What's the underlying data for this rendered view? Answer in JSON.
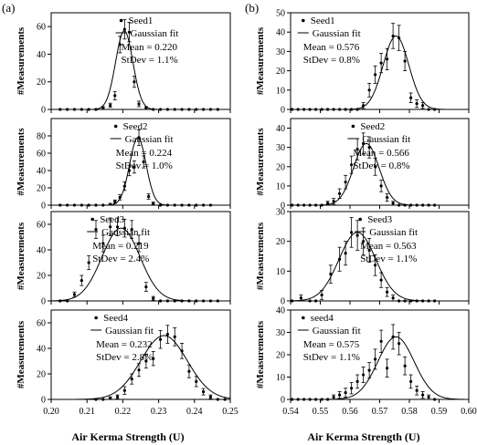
{
  "figure": {
    "panel_a_label": "(a)",
    "panel_b_label": "(b)",
    "ylabel": "#Measurements",
    "xlabel_left": "Air Kerma Strength (U)",
    "xlabel_right": "Air Kerma Strength (U)",
    "legend_fit_label": "Gaussian fit"
  },
  "chart_data": [
    {
      "type": "scatter",
      "column": "a",
      "row": 1,
      "series": [
        {
          "name": "Seed1"
        },
        {
          "name": "Gaussian fit"
        }
      ],
      "mean_text": "Mean = 0.220",
      "stdev_text": "StDev = 1.1%",
      "xlim": [
        0.2,
        0.25
      ],
      "ylim": [
        0,
        70
      ],
      "yticks": [
        "0",
        "20",
        "40",
        "60"
      ],
      "xticks": [
        "0.20",
        "0.21",
        "0.22",
        "0.23",
        "0.24",
        "0.25"
      ],
      "fit": {
        "mean": 0.2204,
        "sigma": 0.0024,
        "amplitude": 57
      },
      "points": [
        [
          0.2025,
          0,
          0
        ],
        [
          0.2045,
          0,
          0
        ],
        [
          0.2065,
          0,
          0
        ],
        [
          0.2085,
          0,
          0
        ],
        [
          0.2105,
          0,
          0
        ],
        [
          0.2125,
          0,
          0
        ],
        [
          0.2145,
          1,
          1
        ],
        [
          0.2165,
          3,
          1.5
        ],
        [
          0.2178,
          10,
          3
        ],
        [
          0.2192,
          47,
          6
        ],
        [
          0.2205,
          58,
          7
        ],
        [
          0.2218,
          56,
          7
        ],
        [
          0.2232,
          20,
          4
        ],
        [
          0.2245,
          4,
          2
        ],
        [
          0.2265,
          1,
          1
        ],
        [
          0.2285,
          0,
          0
        ],
        [
          0.2305,
          0,
          0
        ],
        [
          0.2325,
          0,
          0
        ],
        [
          0.2345,
          0,
          0
        ],
        [
          0.2365,
          0,
          0
        ],
        [
          0.2385,
          0,
          0
        ],
        [
          0.2405,
          0,
          0
        ],
        [
          0.2425,
          0,
          0
        ],
        [
          0.2445,
          0,
          0
        ],
        [
          0.2465,
          0,
          0
        ]
      ]
    },
    {
      "type": "scatter",
      "column": "a",
      "row": 2,
      "series": [
        {
          "name": "Seed2"
        },
        {
          "name": "Gaussian fit"
        }
      ],
      "mean_text": "Mean = 0.224",
      "stdev_text": "StDev = 1.0%",
      "xlim": [
        0.2,
        0.25
      ],
      "ylim": [
        0,
        100
      ],
      "yticks": [
        "0",
        "20",
        "40",
        "60",
        "80"
      ],
      "xticks": [
        "0.20",
        "0.21",
        "0.22",
        "0.23",
        "0.24",
        "0.25"
      ],
      "fit": {
        "mean": 0.2242,
        "sigma": 0.0023,
        "amplitude": 78
      },
      "points": [
        [
          0.2025,
          0,
          0
        ],
        [
          0.2045,
          0,
          0
        ],
        [
          0.2065,
          0,
          0
        ],
        [
          0.2085,
          0,
          0
        ],
        [
          0.2105,
          0,
          0
        ],
        [
          0.2125,
          0,
          0
        ],
        [
          0.2145,
          0,
          0
        ],
        [
          0.2165,
          1,
          1
        ],
        [
          0.2178,
          4,
          2
        ],
        [
          0.2192,
          9,
          3
        ],
        [
          0.2205,
          22,
          5
        ],
        [
          0.2218,
          40,
          6
        ],
        [
          0.2232,
          44,
          7
        ],
        [
          0.2245,
          78,
          9
        ],
        [
          0.2258,
          50,
          7
        ],
        [
          0.2272,
          10,
          3
        ],
        [
          0.2285,
          2,
          1.5
        ],
        [
          0.2305,
          0,
          0
        ],
        [
          0.2325,
          0,
          0
        ],
        [
          0.2345,
          0,
          0
        ],
        [
          0.2365,
          0,
          0
        ],
        [
          0.2385,
          0,
          0
        ],
        [
          0.2405,
          0,
          0
        ],
        [
          0.2425,
          0,
          0
        ],
        [
          0.2445,
          0,
          0
        ]
      ]
    },
    {
      "type": "scatter",
      "column": "a",
      "row": 3,
      "series": [
        {
          "name": "Seed3"
        },
        {
          "name": "Gaussian fit"
        }
      ],
      "mean_text": "Mean = 0.219",
      "stdev_text": "StDev = 2.4%",
      "xlim": [
        0.2,
        0.25
      ],
      "ylim": [
        0,
        70
      ],
      "yticks": [
        "0",
        "20",
        "40",
        "60"
      ],
      "xticks": [
        "0.20",
        "0.21",
        "0.22",
        "0.23",
        "0.24",
        "0.25"
      ],
      "fit": {
        "mean": 0.2195,
        "sigma": 0.0053,
        "amplitude": 57
      },
      "points": [
        [
          0.2025,
          0,
          0
        ],
        [
          0.2045,
          0,
          0
        ],
        [
          0.2065,
          5,
          2
        ],
        [
          0.2085,
          16,
          4
        ],
        [
          0.2105,
          30,
          5.5
        ],
        [
          0.2125,
          56,
          7
        ],
        [
          0.2145,
          45,
          6.5
        ],
        [
          0.2165,
          58,
          7
        ],
        [
          0.2185,
          58,
          7
        ],
        [
          0.2205,
          57,
          7
        ],
        [
          0.2225,
          56,
          7
        ],
        [
          0.2245,
          45,
          6.5
        ],
        [
          0.2265,
          11,
          3.5
        ],
        [
          0.2285,
          2,
          1.5
        ],
        [
          0.2305,
          0,
          0
        ],
        [
          0.2325,
          0,
          0
        ],
        [
          0.2345,
          0,
          0
        ],
        [
          0.2365,
          0,
          0
        ],
        [
          0.2385,
          0,
          0
        ],
        [
          0.2405,
          0,
          0
        ],
        [
          0.2425,
          0,
          0
        ],
        [
          0.2445,
          0,
          0
        ],
        [
          0.2465,
          0,
          0
        ]
      ]
    },
    {
      "type": "scatter",
      "column": "a",
      "row": 4,
      "series": [
        {
          "name": "Seed4"
        },
        {
          "name": "Gaussian fit"
        }
      ],
      "mean_text": "Mean = 0.232",
      "stdev_text": "StDev = 2.8%",
      "xlim": [
        0.2,
        0.25
      ],
      "ylim": [
        0,
        70
      ],
      "yticks": [
        "0",
        "20",
        "40",
        "60"
      ],
      "xticks": [
        "0.20",
        "0.21",
        "0.22",
        "0.23",
        "0.24",
        "0.25"
      ],
      "fit": {
        "mean": 0.2315,
        "sigma": 0.0065,
        "amplitude": 50
      },
      "points": [
        [
          0.2125,
          0,
          0
        ],
        [
          0.2145,
          0,
          0
        ],
        [
          0.2165,
          1,
          1
        ],
        [
          0.2185,
          2,
          1.5
        ],
        [
          0.2205,
          7,
          3
        ],
        [
          0.2225,
          16,
          4
        ],
        [
          0.2245,
          23,
          5
        ],
        [
          0.2265,
          30,
          5.5
        ],
        [
          0.2285,
          32,
          5.5
        ],
        [
          0.2305,
          47,
          7
        ],
        [
          0.2325,
          51,
          7
        ],
        [
          0.2345,
          49,
          7
        ],
        [
          0.2365,
          38,
          6
        ],
        [
          0.2385,
          22,
          5
        ],
        [
          0.2405,
          14,
          4
        ],
        [
          0.2425,
          6,
          2.5
        ],
        [
          0.2445,
          2,
          1.5
        ],
        [
          0.2465,
          0,
          0
        ],
        [
          0.2485,
          0,
          0
        ]
      ]
    },
    {
      "type": "scatter",
      "column": "b",
      "row": 1,
      "series": [
        {
          "name": "Seed1"
        },
        {
          "name": "Gaussian fit"
        }
      ],
      "mean_text": "Mean = 0.576",
      "stdev_text": "StDev = 0.8%",
      "xlim": [
        0.54,
        0.6
      ],
      "ylim": [
        0,
        50
      ],
      "yticks": [
        "0",
        "10",
        "20",
        "30",
        "40",
        "50"
      ],
      "xticks": [
        "0.54",
        "0.55",
        "0.56",
        "0.57",
        "0.58",
        "0.59",
        "0.60"
      ],
      "fit": {
        "mean": 0.5755,
        "sigma": 0.0043,
        "amplitude": 38
      },
      "points": [
        [
          0.5405,
          0,
          0
        ],
        [
          0.5425,
          0,
          0
        ],
        [
          0.5445,
          0,
          0
        ],
        [
          0.5465,
          0,
          0
        ],
        [
          0.5485,
          0,
          0
        ],
        [
          0.5505,
          0,
          0
        ],
        [
          0.5525,
          0,
          0
        ],
        [
          0.5545,
          0,
          0
        ],
        [
          0.5565,
          0,
          0
        ],
        [
          0.5585,
          0,
          0
        ],
        [
          0.5605,
          0,
          0
        ],
        [
          0.5625,
          0,
          0
        ],
        [
          0.5645,
          2,
          1.5
        ],
        [
          0.5665,
          10,
          3.5
        ],
        [
          0.5685,
          18,
          4.5
        ],
        [
          0.5705,
          24,
          5
        ],
        [
          0.5725,
          26,
          5.5
        ],
        [
          0.5745,
          38,
          6.5
        ],
        [
          0.5765,
          37,
          6.5
        ],
        [
          0.5785,
          25,
          5
        ],
        [
          0.5805,
          6,
          2.5
        ],
        [
          0.5825,
          3,
          2
        ],
        [
          0.5845,
          2,
          1.5
        ],
        [
          0.5865,
          0,
          0
        ],
        [
          0.5885,
          0,
          0
        ]
      ]
    },
    {
      "type": "scatter",
      "column": "b",
      "row": 2,
      "series": [
        {
          "name": "Seed2"
        },
        {
          "name": "Gaussian fit"
        }
      ],
      "mean_text": "Mean = 0.566",
      "stdev_text": "StDev = 0.8%",
      "xlim": [
        0.54,
        0.6
      ],
      "ylim": [
        0,
        45
      ],
      "yticks": [
        "0",
        "10",
        "20",
        "30",
        "40"
      ],
      "xticks": [
        "0.54",
        "0.55",
        "0.56",
        "0.57",
        "0.58",
        "0.59",
        "0.60"
      ],
      "fit": {
        "mean": 0.5655,
        "sigma": 0.0043,
        "amplitude": 32
      },
      "points": [
        [
          0.5405,
          0,
          0
        ],
        [
          0.5425,
          0,
          0
        ],
        [
          0.5445,
          0,
          0
        ],
        [
          0.5465,
          0,
          0
        ],
        [
          0.5485,
          0,
          0
        ],
        [
          0.5505,
          0,
          0
        ],
        [
          0.5525,
          1,
          1
        ],
        [
          0.5545,
          2,
          1.5
        ],
        [
          0.5565,
          6,
          2.5
        ],
        [
          0.5585,
          12,
          3.5
        ],
        [
          0.5605,
          21,
          4.5
        ],
        [
          0.5625,
          29,
          5.5
        ],
        [
          0.5645,
          32,
          5.5
        ],
        [
          0.5665,
          30,
          5.5
        ],
        [
          0.5685,
          20,
          4.5
        ],
        [
          0.5705,
          10,
          3
        ],
        [
          0.5725,
          4,
          2
        ],
        [
          0.5745,
          1,
          1
        ],
        [
          0.5765,
          0,
          0
        ],
        [
          0.5785,
          0,
          0
        ],
        [
          0.5805,
          0,
          0
        ],
        [
          0.5825,
          0,
          0
        ],
        [
          0.5845,
          0,
          0
        ],
        [
          0.5865,
          0,
          0
        ],
        [
          0.5885,
          0,
          0
        ]
      ]
    },
    {
      "type": "scatter",
      "column": "b",
      "row": 3,
      "series": [
        {
          "name": "Seed3"
        },
        {
          "name": "Gaussian fit"
        }
      ],
      "mean_text": "Mean = 0.563",
      "stdev_text": "StDev = 1.1%",
      "xlim": [
        0.54,
        0.6
      ],
      "ylim": [
        0,
        30
      ],
      "yticks": [
        "0",
        "10",
        "20",
        "30"
      ],
      "xticks": [
        "0.54",
        "0.55",
        "0.56",
        "0.57",
        "0.58",
        "0.59",
        "0.60"
      ],
      "fit": {
        "mean": 0.5625,
        "sigma": 0.0062,
        "amplitude": 23
      },
      "points": [
        [
          0.5405,
          0,
          0
        ],
        [
          0.5435,
          1,
          1
        ],
        [
          0.5465,
          0,
          0
        ],
        [
          0.5485,
          0,
          0
        ],
        [
          0.5505,
          2,
          1.5
        ],
        [
          0.5535,
          9,
          3
        ],
        [
          0.5565,
          14,
          4
        ],
        [
          0.5585,
          16,
          4
        ],
        [
          0.5605,
          23,
          5
        ],
        [
          0.5625,
          22,
          5
        ],
        [
          0.5645,
          20,
          4.5
        ],
        [
          0.5665,
          17,
          4
        ],
        [
          0.5685,
          12,
          3.5
        ],
        [
          0.5705,
          7,
          2.5
        ],
        [
          0.5725,
          3,
          1.5
        ],
        [
          0.5745,
          1,
          1
        ],
        [
          0.5765,
          0,
          0
        ],
        [
          0.5785,
          0,
          0
        ],
        [
          0.5805,
          0,
          0
        ],
        [
          0.5825,
          0,
          0
        ],
        [
          0.5845,
          0,
          0
        ],
        [
          0.5865,
          0,
          0
        ],
        [
          0.5885,
          0,
          0
        ]
      ]
    },
    {
      "type": "scatter",
      "column": "b",
      "row": 4,
      "series": [
        {
          "name": "seed4"
        },
        {
          "name": "Gaussian fit"
        }
      ],
      "mean_text": "Mean = 0.575",
      "stdev_text": "StDev = 1.1%",
      "xlim": [
        0.54,
        0.6
      ],
      "ylim": [
        0,
        40
      ],
      "yticks": [
        "0",
        "10",
        "20",
        "30",
        "40"
      ],
      "xticks": [
        "0.54",
        "0.55",
        "0.56",
        "0.57",
        "0.58",
        "0.59",
        "0.60"
      ],
      "fit": {
        "mean": 0.5755,
        "sigma": 0.0061,
        "amplitude": 28
      },
      "points": [
        [
          0.5405,
          0,
          0
        ],
        [
          0.5425,
          0,
          0
        ],
        [
          0.5445,
          0,
          0
        ],
        [
          0.5465,
          0,
          0
        ],
        [
          0.5485,
          0,
          0
        ],
        [
          0.5505,
          0,
          0
        ],
        [
          0.5525,
          0,
          0
        ],
        [
          0.5545,
          1,
          1
        ],
        [
          0.5565,
          2,
          1.5
        ],
        [
          0.5585,
          3,
          2
        ],
        [
          0.5605,
          5,
          2.5
        ],
        [
          0.5625,
          8,
          3
        ],
        [
          0.5645,
          11,
          3.5
        ],
        [
          0.5665,
          13,
          3.5
        ],
        [
          0.5685,
          18,
          4.5
        ],
        [
          0.5705,
          26,
          5
        ],
        [
          0.5725,
          14,
          4
        ],
        [
          0.5745,
          28,
          5.5
        ],
        [
          0.5765,
          25,
          5
        ],
        [
          0.5785,
          15,
          4
        ],
        [
          0.5805,
          8,
          3
        ],
        [
          0.5825,
          4,
          2
        ],
        [
          0.5845,
          2,
          1.5
        ],
        [
          0.5865,
          1,
          1
        ],
        [
          0.5885,
          0,
          0
        ]
      ]
    }
  ]
}
